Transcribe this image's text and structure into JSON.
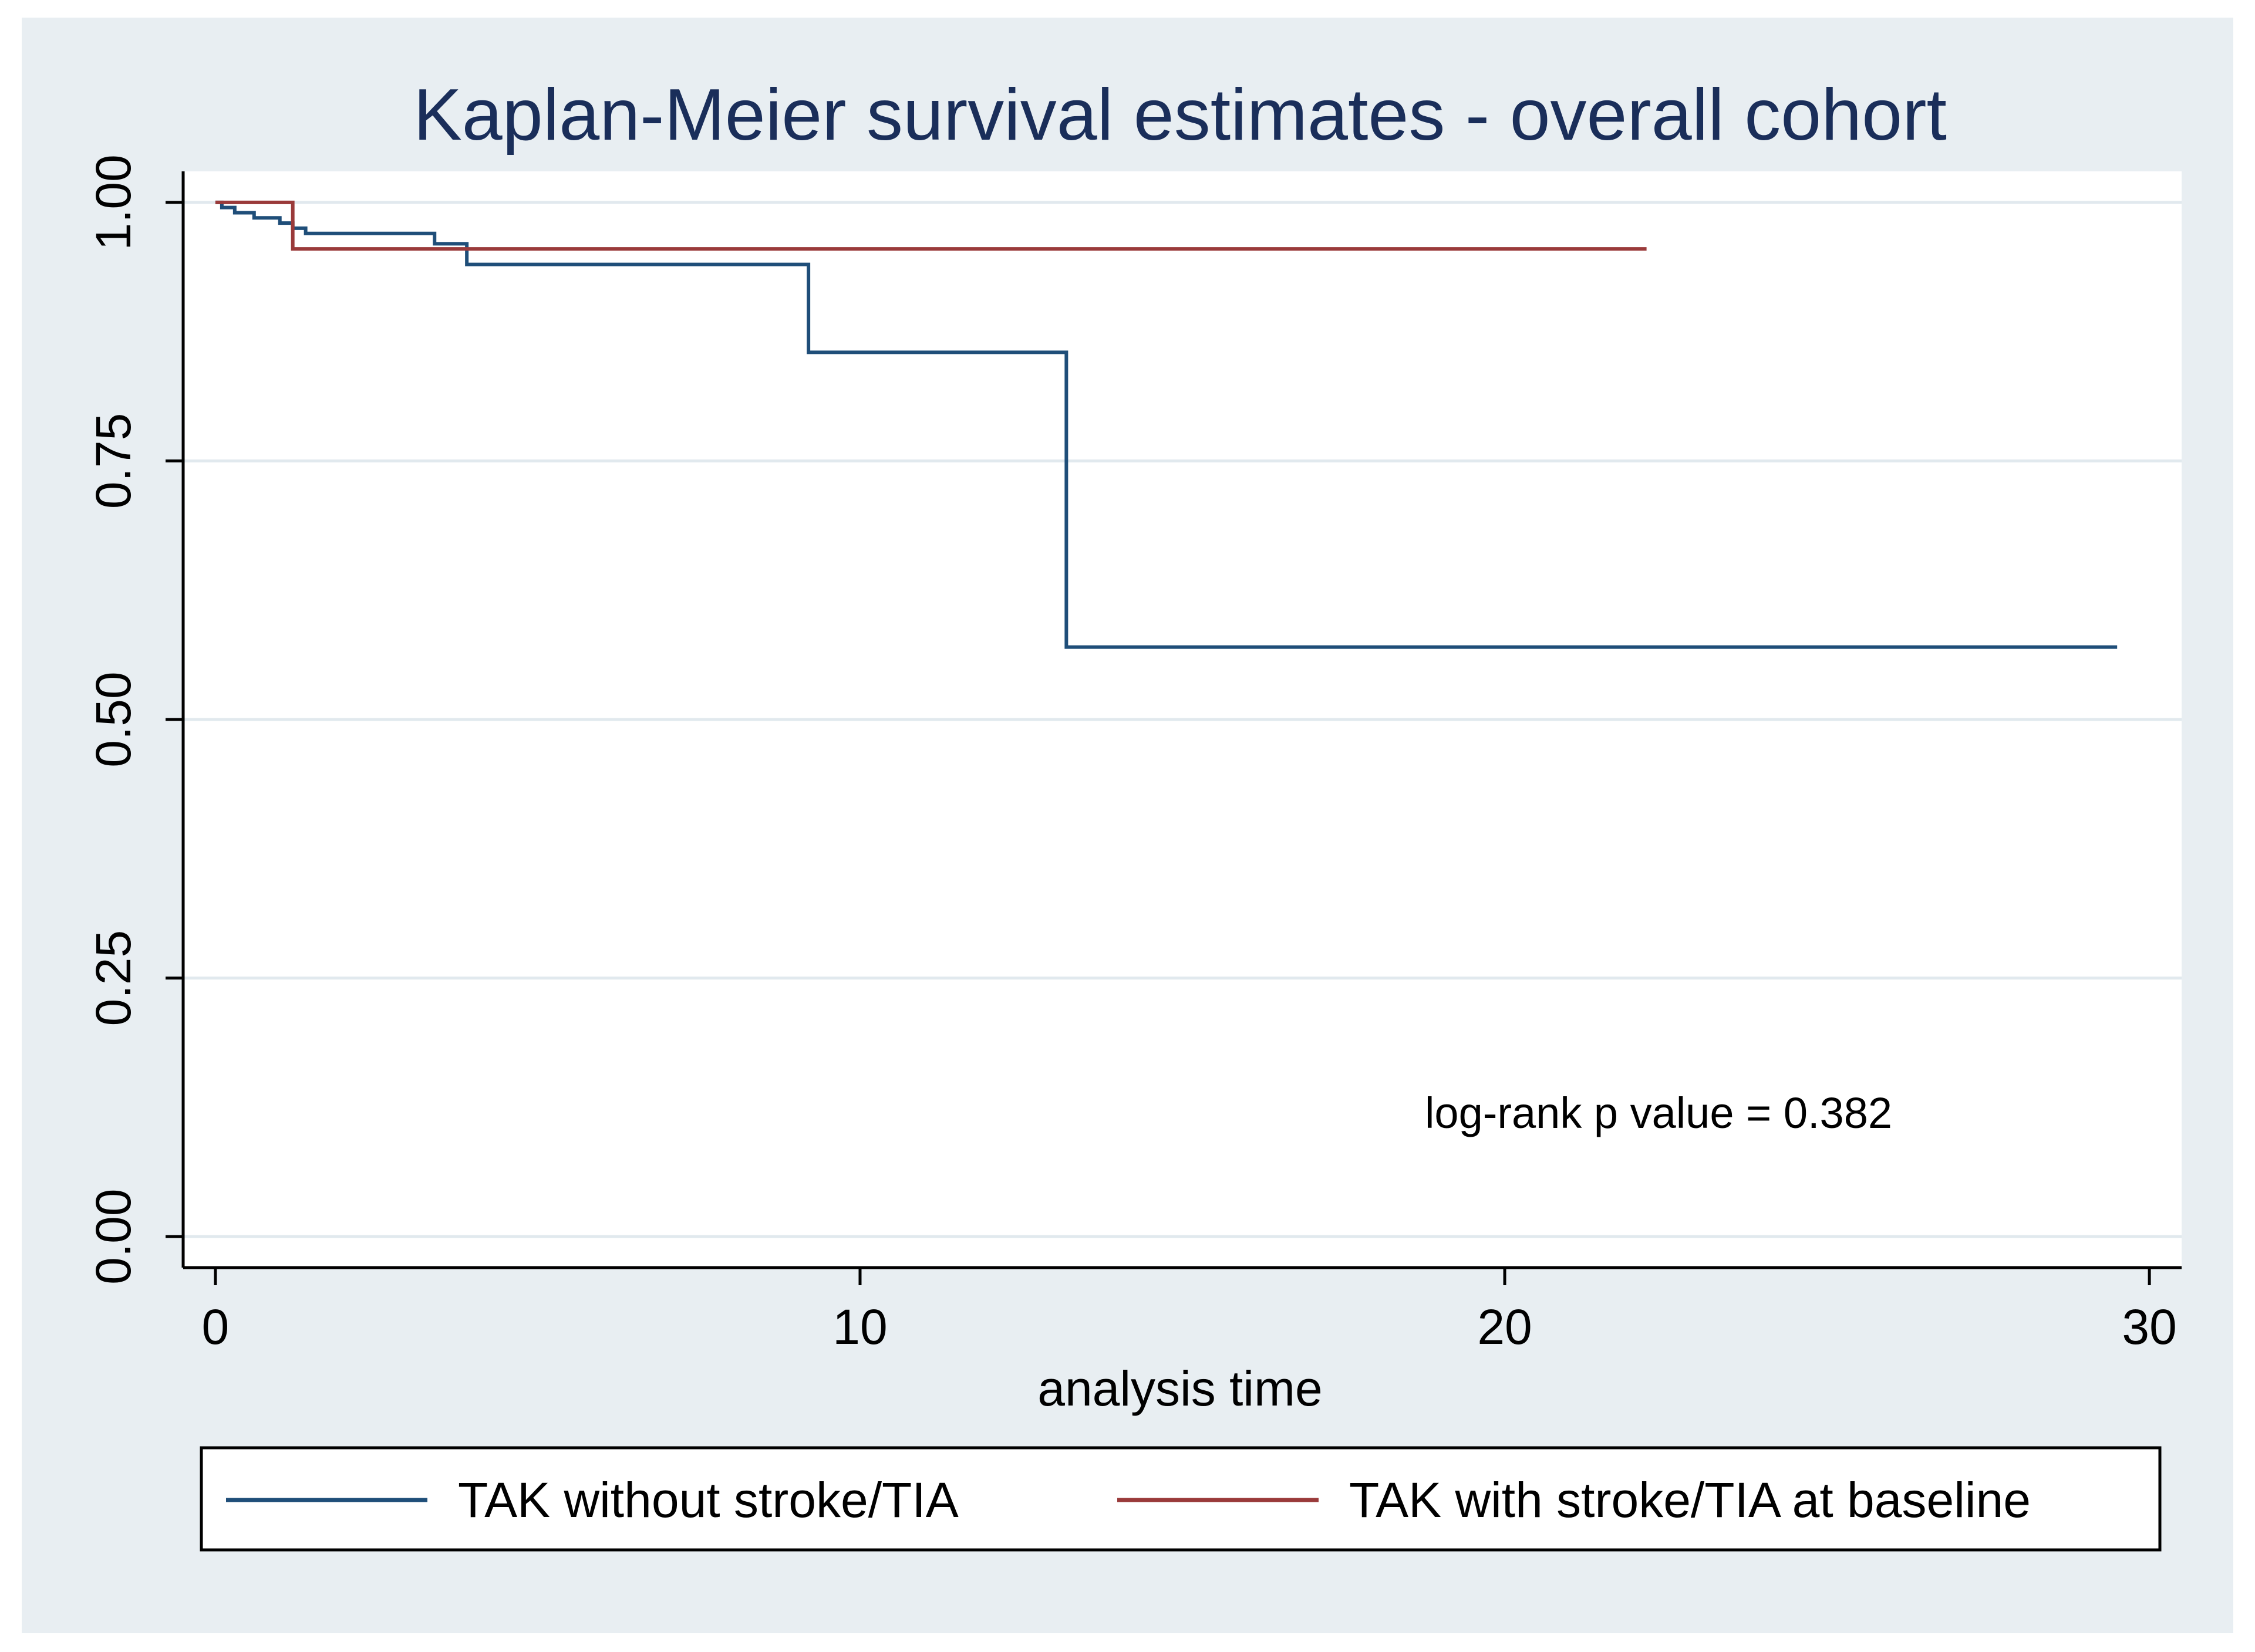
{
  "chart_data": {
    "type": "line",
    "step": true,
    "title": "Kaplan-Meier survival estimates - overall cohort",
    "xlabel": "analysis time",
    "ylabel": "",
    "xlim": [
      -0.5,
      30.5
    ],
    "ylim": [
      -0.03,
      1.03
    ],
    "xticks": [
      0,
      10,
      20,
      30
    ],
    "xtick_labels": [
      "0",
      "10",
      "20",
      "30"
    ],
    "yticks": [
      0,
      0.25,
      0.5,
      0.75,
      1
    ],
    "ytick_labels": [
      "0.00",
      "0.25",
      "0.50",
      "0.75",
      "1.00"
    ],
    "grid": true,
    "annotation": "log-rank p value = 0.382",
    "legend_position": "bottom",
    "series": [
      {
        "name": "TAK without stroke/TIA",
        "color": "#1f4e79",
        "x": [
          0,
          0.1,
          0.3,
          0.6,
          1.0,
          1.2,
          1.4,
          3.4,
          3.9,
          9.2,
          13.2,
          29.5
        ],
        "y": [
          1.0,
          0.995,
          0.99,
          0.985,
          0.98,
          0.975,
          0.97,
          0.96,
          0.94,
          0.855,
          0.57,
          0.57
        ]
      },
      {
        "name": "TAK with stroke/TIA at baseline",
        "color": "#9a3a3a",
        "x": [
          0,
          1.2,
          22.2
        ],
        "y": [
          1.0,
          0.955,
          0.955
        ]
      }
    ]
  },
  "colors": {
    "frame_background": "#e8eef2",
    "plot_background": "#ffffff",
    "gridline": "#e1e9ee",
    "title": "#1a2e5a"
  }
}
